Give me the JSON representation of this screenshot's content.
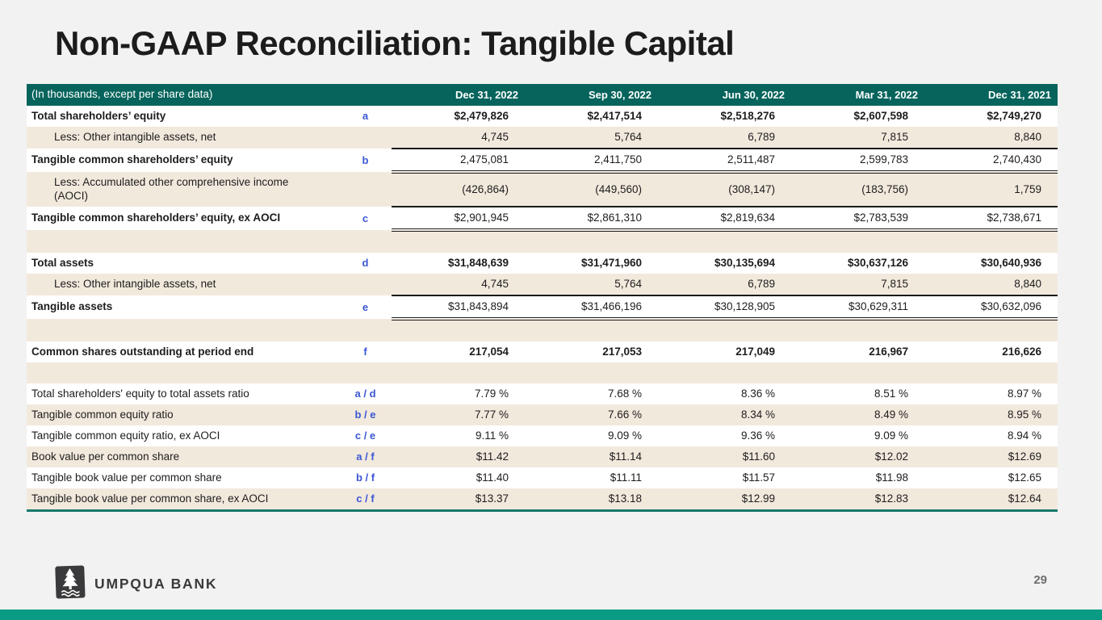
{
  "slide": {
    "title": "Non-GAAP Reconciliation: Tangible Capital",
    "page_number": "29",
    "logo_text": "UMPQUA BANK"
  },
  "colors": {
    "header_teal": "#07645c",
    "footer_bar_teal": "#0a9b84",
    "table_bottom_rule": "#177a6c",
    "row_beige": "#f2e9dd",
    "code_blue": "#3a56d4",
    "background": "#f2f2f3"
  },
  "table": {
    "unit_note": "(In thousands, except per share data)",
    "columns": [
      "Dec 31, 2022",
      "Sep 30, 2022",
      "Jun 30, 2022",
      "Mar 31, 2022",
      "Dec 31, 2021"
    ],
    "rows": [
      {
        "label": "Total shareholders’ equity",
        "code": "a",
        "bold_label": true,
        "bold_values": true,
        "values": [
          "$2,479,826",
          "$2,417,514",
          "$2,518,276",
          "$2,607,598",
          "$2,749,270"
        ]
      },
      {
        "label": "Less: Other intangible assets, net",
        "indent": true,
        "rule": "single",
        "values": [
          "4,745",
          "5,764",
          "6,789",
          "7,815",
          "8,840"
        ]
      },
      {
        "label": "Tangible common shareholders’ equity",
        "code": "b",
        "bold_label": true,
        "rule": "double",
        "values": [
          "2,475,081",
          "2,411,750",
          "2,511,487",
          "2,599,783",
          "2,740,430"
        ]
      },
      {
        "label": "Less: Accumulated other comprehensive income\n(AOCI)",
        "indent": true,
        "rule": "single",
        "tall": true,
        "values": [
          "(426,864)",
          "(449,560)",
          "(308,147)",
          "(183,756)",
          "1,759"
        ]
      },
      {
        "label": "Tangible common shareholders’ equity, ex AOCI",
        "code": "c",
        "bold_label": true,
        "rule": "double",
        "values": [
          "$2,901,945",
          "$2,861,310",
          "$2,819,634",
          "$2,783,539",
          "$2,738,671"
        ]
      },
      {
        "spacer": true
      },
      {
        "label": "Total assets",
        "code": "d",
        "bold_label": true,
        "bold_values": true,
        "values": [
          "$31,848,639",
          "$31,471,960",
          "$30,135,694",
          "$30,637,126",
          "$30,640,936"
        ]
      },
      {
        "label": "Less: Other intangible assets, net",
        "indent": true,
        "rule": "single",
        "values": [
          "4,745",
          "5,764",
          "6,789",
          "7,815",
          "8,840"
        ]
      },
      {
        "label": "Tangible assets",
        "code": "e",
        "bold_label": true,
        "rule": "double",
        "values": [
          "$31,843,894",
          "$31,466,196",
          "$30,128,905",
          "$30,629,311",
          "$30,632,096"
        ]
      },
      {
        "spacer": true
      },
      {
        "label": "Common shares outstanding at period end",
        "code": "f",
        "bold_label": true,
        "bold_values": true,
        "values": [
          "217,054",
          "217,053",
          "217,049",
          "216,967",
          "216,626"
        ]
      },
      {
        "spacer": true
      },
      {
        "label": "Total shareholders' equity to total assets ratio",
        "code": "a / d",
        "values": [
          "7.79 %",
          "7.68 %",
          "8.36 %",
          "8.51 %",
          "8.97 %"
        ]
      },
      {
        "label": "Tangible common equity ratio",
        "code": "b / e",
        "values": [
          "7.77 %",
          "7.66 %",
          "8.34 %",
          "8.49 %",
          "8.95 %"
        ]
      },
      {
        "label": "Tangible common equity ratio, ex AOCI",
        "code": "c / e",
        "values": [
          "9.11 %",
          "9.09 %",
          "9.36 %",
          "9.09 %",
          "8.94 %"
        ]
      },
      {
        "label": "Book value per common share",
        "code": "a / f",
        "values": [
          "$11.42",
          "$11.14",
          "$11.60",
          "$12.02",
          "$12.69"
        ]
      },
      {
        "label": "Tangible book value per common share",
        "code": "b / f",
        "values": [
          "$11.40",
          "$11.11",
          "$11.57",
          "$11.98",
          "$12.65"
        ]
      },
      {
        "label": "Tangible book value per common share, ex AOCI",
        "code": "c / f",
        "values": [
          "$13.37",
          "$13.18",
          "$12.99",
          "$12.83",
          "$12.64"
        ]
      }
    ]
  }
}
